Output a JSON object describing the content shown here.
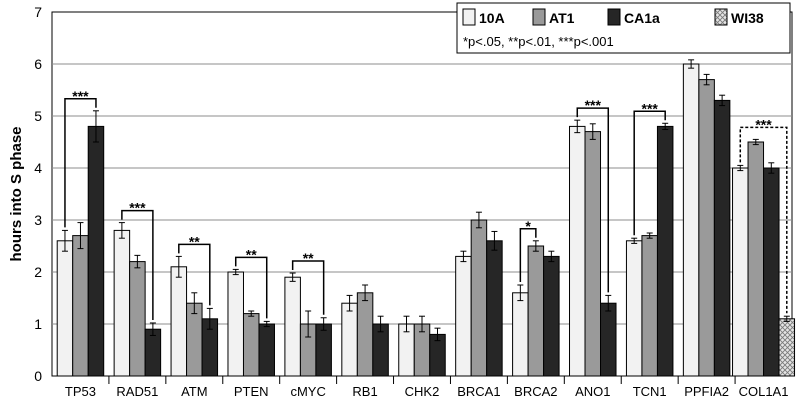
{
  "chart_data": {
    "type": "bar",
    "ylabel": "hours into S phase",
    "ylim": [
      0,
      7
    ],
    "yticks": [
      0,
      1,
      2,
      3,
      4,
      5,
      6,
      7
    ],
    "grid": true,
    "legend_position": "top-right",
    "significance_note": "*p<.05, **p<.01, ***p<.001",
    "categories": [
      "TP53",
      "RAD51",
      "ATM",
      "PTEN",
      "cMYC",
      "RB1",
      "CHK2",
      "BRCA1",
      "BRCA2",
      "ANO1",
      "TCN1",
      "PPFIA2",
      "COL1A1"
    ],
    "series": [
      {
        "name": "10A",
        "color": "#f2f2f2",
        "values": [
          2.6,
          2.8,
          2.1,
          2.0,
          1.9,
          1.4,
          1.0,
          2.3,
          1.6,
          4.8,
          2.6,
          6.0,
          4.0
        ],
        "errors": [
          0.2,
          0.15,
          0.2,
          0.05,
          0.08,
          0.15,
          0.15,
          0.1,
          0.15,
          0.12,
          0.05,
          0.08,
          0.05
        ]
      },
      {
        "name": "AT1",
        "color": "#9a9a9a",
        "values": [
          2.7,
          2.2,
          1.4,
          1.2,
          1.0,
          1.6,
          1.0,
          3.0,
          2.5,
          4.7,
          2.7,
          5.7,
          4.5
        ],
        "errors": [
          0.25,
          0.12,
          0.2,
          0.05,
          0.25,
          0.15,
          0.15,
          0.15,
          0.1,
          0.15,
          0.05,
          0.1,
          0.05
        ]
      },
      {
        "name": "CA1a",
        "color": "#262626",
        "values": [
          4.8,
          0.9,
          1.1,
          1.0,
          1.0,
          1.0,
          0.8,
          2.6,
          2.3,
          1.4,
          4.8,
          5.3,
          4.0
        ],
        "errors": [
          0.3,
          0.12,
          0.2,
          0.05,
          0.12,
          0.15,
          0.12,
          0.18,
          0.1,
          0.15,
          0.06,
          0.1,
          0.1
        ]
      },
      {
        "name": "WI38",
        "color": "#d0d0d0",
        "pattern": "crosshatch",
        "values": [
          null,
          null,
          null,
          null,
          null,
          null,
          null,
          null,
          null,
          null,
          null,
          null,
          1.1
        ],
        "errors": [
          null,
          null,
          null,
          null,
          null,
          null,
          null,
          null,
          null,
          null,
          null,
          null,
          0.05
        ]
      }
    ],
    "annotations": [
      {
        "category": "TP53",
        "from_series": "10A",
        "to_series": "CA1a",
        "label": "***",
        "style": "solid"
      },
      {
        "category": "RAD51",
        "from_series": "10A",
        "to_series": "CA1a",
        "label": "***",
        "style": "solid"
      },
      {
        "category": "ATM",
        "from_series": "10A",
        "to_series": "CA1a",
        "label": "**",
        "style": "solid"
      },
      {
        "category": "PTEN",
        "from_series": "10A",
        "to_series": "CA1a",
        "label": "**",
        "style": "solid"
      },
      {
        "category": "cMYC",
        "from_series": "10A",
        "to_series": "CA1a",
        "label": "**",
        "style": "solid"
      },
      {
        "category": "BRCA2",
        "from_series": "10A",
        "to_series": "AT1",
        "label": "*",
        "style": "solid"
      },
      {
        "category": "ANO1",
        "from_series": "10A",
        "to_series": "CA1a",
        "label": "***",
        "style": "solid"
      },
      {
        "category": "TCN1",
        "from_series": "10A",
        "to_series": "CA1a",
        "label": "***",
        "style": "solid"
      },
      {
        "category": "COL1A1",
        "from_series": "10A",
        "to_series": "WI38",
        "label": "***",
        "style": "dashed"
      }
    ]
  }
}
